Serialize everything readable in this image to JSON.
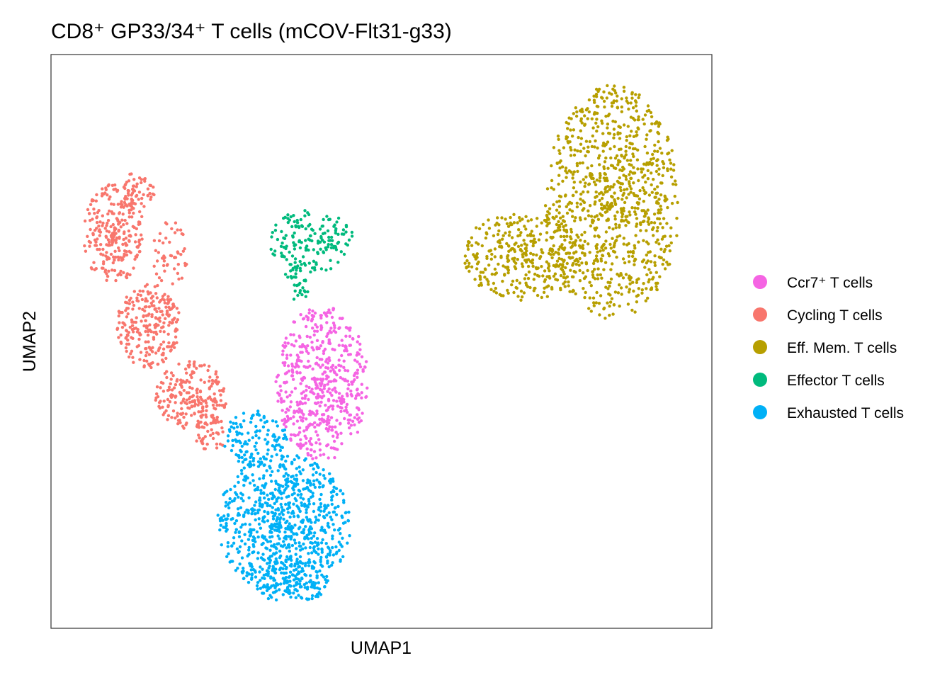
{
  "chart_data": {
    "type": "scatter",
    "title": "CD8⁺ GP33/34⁺ T cells (mCOV-Flt31-g33)",
    "xlabel": "UMAP1",
    "ylabel": "UMAP2",
    "xlim": [
      0,
      100
    ],
    "ylim": [
      0,
      100
    ],
    "grid": false,
    "axis_ticks": false,
    "legend_position": "right",
    "legend": [
      {
        "label": "Ccr7⁺ T cells",
        "color": "#F564E3"
      },
      {
        "label": "Cycling T cells",
        "color": "#F8766D"
      },
      {
        "label": "Eff. Mem. T cells",
        "color": "#B79F00"
      },
      {
        "label": "Effector T cells",
        "color": "#00BA7D"
      },
      {
        "label": "Exhausted T cells",
        "color": "#00B0F6"
      }
    ],
    "series": [
      {
        "name": "Ccr7⁺ T cells",
        "color": "#F564E3",
        "regions": [
          {
            "cx": 41,
            "cy": 42.8,
            "rx": 7,
            "ry": 13.6,
            "n": 550
          }
        ]
      },
      {
        "name": "Cycling T cells",
        "color": "#F8766D",
        "regions": [
          {
            "cx": 9.4,
            "cy": 68.8,
            "rx": 4.8,
            "ry": 8.6,
            "n": 250
          },
          {
            "cx": 12.6,
            "cy": 76.2,
            "rx": 3.2,
            "ry": 3.1,
            "n": 60
          },
          {
            "cx": 14.8,
            "cy": 52.8,
            "rx": 4.8,
            "ry": 7.4,
            "n": 250
          },
          {
            "cx": 21.2,
            "cy": 40.4,
            "rx": 5.4,
            "ry": 6.2,
            "n": 220
          },
          {
            "cx": 18,
            "cy": 65,
            "rx": 2.7,
            "ry": 6,
            "n": 50
          },
          {
            "cx": 24.4,
            "cy": 34,
            "rx": 2.7,
            "ry": 3.1,
            "n": 40
          }
        ]
      },
      {
        "name": "Eff. Mem. T cells",
        "color": "#B79F00",
        "regions": [
          {
            "cx": 85,
            "cy": 74.3,
            "rx": 10.2,
            "ry": 20.4,
            "n": 900
          },
          {
            "cx": 71.6,
            "cy": 65,
            "rx": 9.1,
            "ry": 8,
            "n": 350
          }
        ]
      },
      {
        "name": "Effector T cells",
        "color": "#00BA7D",
        "regions": [
          {
            "cx": 39.4,
            "cy": 67.5,
            "rx": 6.4,
            "ry": 5.5,
            "n": 160
          },
          {
            "cx": 37.3,
            "cy": 60.5,
            "rx": 2,
            "ry": 3.7,
            "n": 40
          }
        ]
      },
      {
        "name": "Exhausted T cells",
        "color": "#00B0F6",
        "regions": [
          {
            "cx": 35.2,
            "cy": 18.1,
            "rx": 10.2,
            "ry": 12.3,
            "n": 800
          },
          {
            "cx": 30.9,
            "cy": 33,
            "rx": 4.8,
            "ry": 5,
            "n": 120
          },
          {
            "cx": 36.2,
            "cy": 8.3,
            "rx": 6.4,
            "ry": 3.7,
            "n": 120
          }
        ]
      }
    ]
  }
}
